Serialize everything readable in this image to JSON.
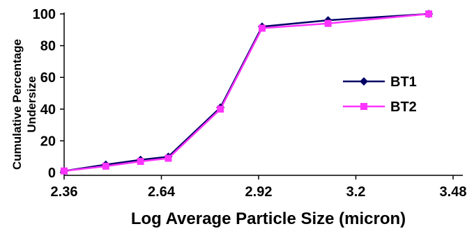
{
  "chart_data": {
    "type": "line",
    "title": "",
    "xlabel": "Log Average Particle Size (micron)",
    "ylabel_lines": [
      "Cumulative Percentage",
      "Undersize"
    ],
    "xlim": [
      2.36,
      3.48
    ],
    "ylim": [
      0,
      100
    ],
    "x_ticks": [
      "2.36",
      "2.64",
      "2.92",
      "3.2",
      "3.48"
    ],
    "y_ticks": [
      "0",
      "20",
      "40",
      "60",
      "80",
      "100"
    ],
    "grid": false,
    "legend_position": "right",
    "series": [
      {
        "name": "BT1",
        "color": "#000066",
        "marker": "diamond",
        "x": [
          2.36,
          2.48,
          2.58,
          2.66,
          2.81,
          2.93,
          3.12,
          3.41
        ],
        "y": [
          1,
          5,
          8,
          10,
          41,
          92,
          96,
          100
        ]
      },
      {
        "name": "BT2",
        "color": "#ff33ff",
        "marker": "square",
        "x": [
          2.36,
          2.48,
          2.58,
          2.66,
          2.81,
          2.93,
          3.12,
          3.41
        ],
        "y": [
          1,
          4,
          7,
          9,
          40,
          91,
          94,
          100
        ]
      }
    ]
  }
}
